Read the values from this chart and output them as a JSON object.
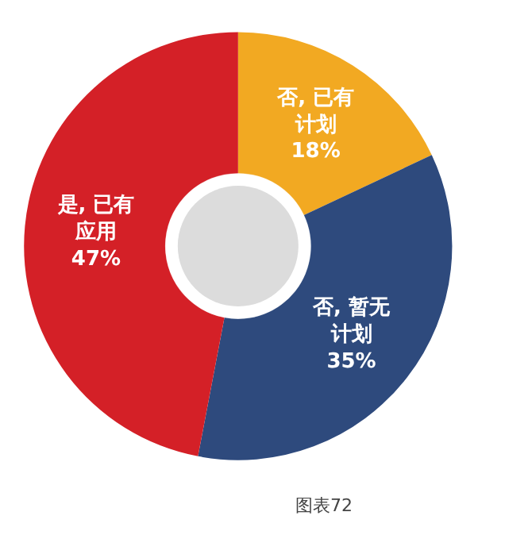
{
  "chart_data": {
    "type": "donut",
    "categories": [
      "否, 已有计划",
      "否, 暂无计划",
      "是, 已有应用"
    ],
    "values": [
      18,
      35,
      47
    ],
    "colors": [
      "#f2a922",
      "#2e4a7d",
      "#d42027"
    ],
    "value_labels": [
      "18%",
      "35%",
      "47%"
    ],
    "legend": false,
    "annotations": [
      "图表72"
    ]
  }
}
